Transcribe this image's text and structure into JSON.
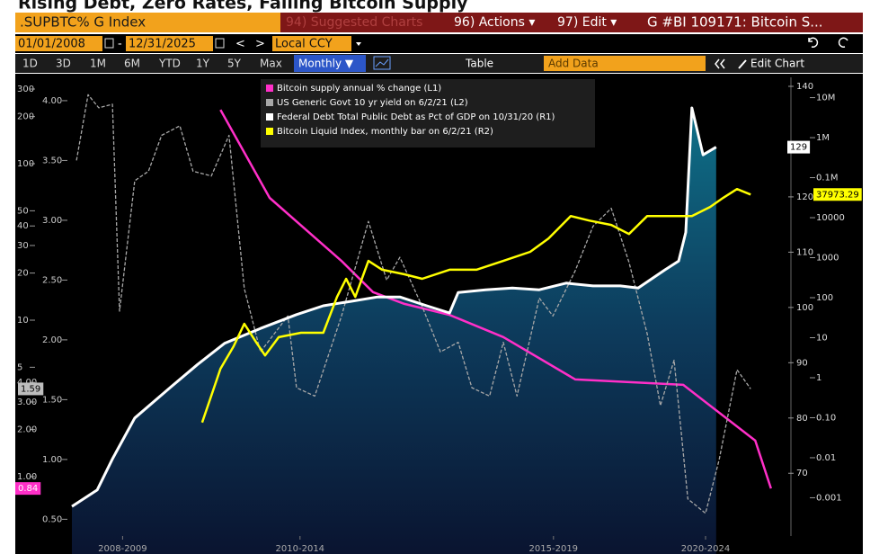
{
  "title": "Rising Debt, Zero Rates, Falling Bitcoin Supply",
  "toolbar": {
    "security": ".SUPBTC% G Index",
    "menu": [
      "94) Suggested Charts",
      "96) Actions ▾",
      "97) Edit ▾"
    ],
    "chart_title": "G #BI 109171: Bitcoin S...",
    "start_date": "01/01/2008",
    "date_separator": "-",
    "end_date": "12/31/2025",
    "nav": [
      "<",
      ">"
    ],
    "currency": "Local CCY",
    "periods": [
      "1D",
      "3D",
      "1M",
      "6M",
      "YTD",
      "1Y",
      "5Y",
      "Max"
    ],
    "frequency": "Monthly ▼",
    "table": "Table",
    "add_data": "Add Data",
    "edit_chart": "Edit Chart"
  },
  "chart_data": {
    "type": "line",
    "xlim": [
      2008,
      2022
    ],
    "xticks": [
      {
        "value": 2009,
        "label": "2008-2009"
      },
      {
        "value": 2012.5,
        "label": "2010-2014"
      },
      {
        "value": 2017.5,
        "label": "2015-2019"
      },
      {
        "value": 2020.5,
        "label": "2020-2024"
      }
    ],
    "yaxes": [
      {
        "id": "l1",
        "scale": "log",
        "ylim": [
          0.44,
          347
        ],
        "yticks": [
          300,
          200,
          100,
          50,
          40,
          30,
          20,
          10,
          5,
          {
            "value": 4,
            "label": "4.00"
          },
          {
            "value": 3,
            "label": "3.00"
          },
          {
            "value": 2,
            "label": "2.00"
          },
          {
            "value": 1,
            "label": "1.00"
          }
        ]
      },
      {
        "id": "l2",
        "scale": "linear",
        "ylim": [
          0.39,
          4.18
        ],
        "yticks": [
          {
            "value": 4,
            "label": "4.00"
          },
          {
            "value": 3.5,
            "label": "3.50"
          },
          {
            "value": 3,
            "label": "3.00"
          },
          {
            "value": 2.5,
            "label": "2.50"
          },
          {
            "value": 2,
            "label": "2.00"
          },
          {
            "value": 1.5,
            "label": "1.50"
          },
          {
            "value": 1,
            "label": "1.00"
          },
          {
            "value": 0.5,
            "label": "0.50"
          }
        ]
      },
      {
        "id": "r1",
        "scale": "linear",
        "ylim": [
          59.3,
          141.3
        ],
        "yticks": [
          140,
          120,
          110,
          100,
          90,
          80,
          70
        ]
      },
      {
        "id": "r2",
        "scale": "log",
        "ylim": [
          0.000136,
          29000000
        ],
        "yticks": [
          {
            "value": 10000000,
            "label": "10M"
          },
          {
            "value": 1000000,
            "label": "1M"
          },
          {
            "value": 100000,
            "label": "0.1M"
          },
          10000,
          1000,
          100,
          10,
          1,
          {
            "value": 0.1,
            "label": "0.10"
          },
          0.01,
          0.001
        ]
      }
    ],
    "series": [
      {
        "name": "Bitcoin supply annual % change (L1)",
        "color": "#ff2fc8",
        "axis": "l1",
        "x": [
          2010.93,
          2011.9,
          2013.32,
          2013.94,
          2014.56,
          2015.45,
          2016.51,
          2017.93,
          2020.06,
          2021.48,
          2021.79
        ],
        "values": [
          221,
          60.5,
          23.9,
          15.1,
          12.7,
          10.8,
          7.8,
          4.18,
          3.86,
          1.7,
          0.84
        ]
      },
      {
        "name": "US Generic Govt 10 yr yield on 6/2/21 (L2)",
        "color": "#a8a8a8",
        "axis": "l2",
        "dashed": true,
        "x": [
          2008.09,
          2008.32,
          2008.53,
          2008.8,
          2008.94,
          2009.24,
          2009.51,
          2009.77,
          2010.13,
          2010.39,
          2010.75,
          2011.1,
          2011.4,
          2011.72,
          2012.26,
          2012.43,
          2012.79,
          2013.32,
          2013.85,
          2014.21,
          2014.47,
          2014.91,
          2015.27,
          2015.62,
          2015.89,
          2016.24,
          2016.51,
          2016.78,
          2017.22,
          2017.49,
          2017.93,
          2018.28,
          2018.64,
          2018.99,
          2019.35,
          2019.61,
          2019.88,
          2020.15,
          2020.5,
          2020.77,
          2021.12,
          2021.39
        ],
        "values": [
          3.5,
          4.05,
          3.94,
          3.97,
          2.24,
          3.33,
          3.41,
          3.71,
          3.79,
          3.41,
          3.37,
          3.71,
          2.43,
          1.9,
          2.2,
          1.6,
          1.53,
          2.2,
          2.99,
          2.5,
          2.69,
          2.28,
          1.9,
          1.98,
          1.6,
          1.53,
          1.98,
          1.53,
          2.35,
          2.2,
          2.58,
          2.95,
          3.1,
          2.65,
          2.05,
          1.45,
          1.83,
          0.67,
          0.55,
          1.0,
          1.75,
          1.59
        ]
      },
      {
        "name": "Federal Debt Total Public Debt as Pct of GDP on 10/31/20 (R1)",
        "color": "#ffffff",
        "axis": "r1",
        "area": true,
        "x": [
          2008.0,
          2008.5,
          2008.8,
          2009.24,
          2009.95,
          2010.48,
          2011.01,
          2011.72,
          2012.43,
          2012.96,
          2013.5,
          2014.03,
          2014.47,
          2015.0,
          2015.45,
          2015.62,
          2016.16,
          2016.69,
          2017.22,
          2017.75,
          2018.28,
          2018.82,
          2019.17,
          2019.7,
          2019.97,
          2020.11,
          2020.23,
          2020.45,
          2020.71
        ],
        "values": [
          64,
          67,
          72.6,
          80,
          85.6,
          89.7,
          93.5,
          96.2,
          98.7,
          100.3,
          101.1,
          101.9,
          101.9,
          100.3,
          99,
          102.7,
          103.2,
          103.5,
          103.2,
          104.4,
          103.9,
          103.9,
          103.5,
          106.8,
          108.4,
          113.6,
          136.1,
          127.6,
          129
        ]
      },
      {
        "name": "Bitcoin Liquid Index, monthly bar on 6/2/21 (R2)",
        "color": "#ffff00",
        "axis": "r2",
        "x": [
          2010.57,
          2010.75,
          2010.93,
          2011.19,
          2011.4,
          2011.63,
          2011.81,
          2012.08,
          2012.52,
          2012.96,
          2013.23,
          2013.41,
          2013.59,
          2013.85,
          2014.12,
          2014.56,
          2014.91,
          2015.45,
          2015.98,
          2016.51,
          2017.04,
          2017.4,
          2017.84,
          2018.2,
          2018.64,
          2018.99,
          2019.35,
          2019.79,
          2020.23,
          2020.59,
          2020.85,
          2021.12,
          2021.39
        ],
        "values": [
          0.076,
          0.355,
          1.68,
          6.1,
          22.3,
          7.9,
          3.6,
          10.3,
          13.3,
          13.3,
          105,
          297,
          105,
          830,
          500,
          385,
          297,
          500,
          500,
          830,
          1400,
          3000,
          11000,
          8500,
          6600,
          3900,
          11000,
          11000,
          11000,
          18500,
          31500,
          52000,
          37973.29
        ]
      }
    ]
  }
}
